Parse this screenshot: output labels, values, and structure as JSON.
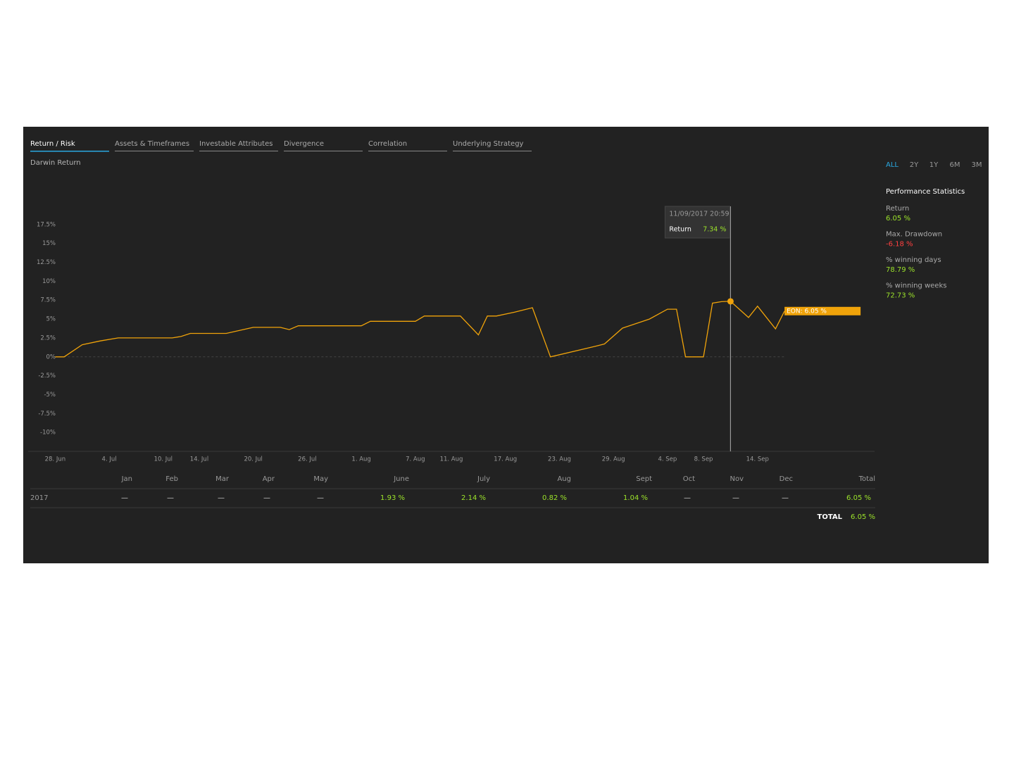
{
  "tabs": [
    "Return / Risk",
    "Assets & Timeframes",
    "Investable Attributes",
    "Divergence",
    "Correlation",
    "Underlying Strategy"
  ],
  "active_tab": 0,
  "section_label": "Darwin Return",
  "ranges": [
    "ALL",
    "2Y",
    "1Y",
    "6M",
    "3M"
  ],
  "active_range": 0,
  "stats": {
    "title": "Performance Statistics",
    "items": [
      {
        "label": "Return",
        "value": "6.05 %"
      },
      {
        "label": "Max. Drawdown",
        "value": "-6.18 %"
      },
      {
        "label": "% winning days",
        "value": "78.79 %"
      },
      {
        "label": "% winning weeks",
        "value": "72.73 %"
      }
    ]
  },
  "chart_data": {
    "type": "line",
    "x": [
      "2017-06-28",
      "2017-06-29",
      "2017-07-01",
      "2017-07-03",
      "2017-07-05",
      "2017-07-11",
      "2017-07-12",
      "2017-07-13",
      "2017-07-17",
      "2017-07-20",
      "2017-07-23",
      "2017-07-24",
      "2017-07-25",
      "2017-08-01",
      "2017-08-02",
      "2017-08-07",
      "2017-08-08",
      "2017-08-12",
      "2017-08-14",
      "2017-08-15",
      "2017-08-16",
      "2017-08-18",
      "2017-08-20",
      "2017-08-22",
      "2017-08-27",
      "2017-08-28",
      "2017-08-30",
      "2017-09-02",
      "2017-09-04",
      "2017-09-05",
      "2017-09-06",
      "2017-09-08",
      "2017-09-09",
      "2017-09-10",
      "2017-09-11",
      "2017-09-13",
      "2017-09-14",
      "2017-09-16",
      "2017-09-17"
    ],
    "series": [
      {
        "color": "#f0a30a",
        "values": [
          0,
          0,
          1.6,
          2.1,
          2.5,
          2.5,
          2.7,
          3.1,
          3.1,
          3.9,
          3.9,
          3.6,
          4.1,
          4.1,
          4.7,
          4.7,
          5.4,
          5.4,
          2.9,
          5.4,
          5.4,
          5.9,
          6.5,
          0,
          1.4,
          1.7,
          3.8,
          5.0,
          6.3,
          6.3,
          0,
          0,
          7.1,
          7.3,
          7.34,
          5.2,
          6.7,
          3.7,
          6.05
        ]
      }
    ],
    "xlim": [
      "2017-06-25",
      "2017-09-27"
    ],
    "xticks": [
      {
        "value": "2017-06-28",
        "label": "28. Jun"
      },
      {
        "value": "2017-07-04",
        "label": "4. Jul"
      },
      {
        "value": "2017-07-10",
        "label": "10. Jul"
      },
      {
        "value": "2017-07-14",
        "label": "14. Jul"
      },
      {
        "value": "2017-07-20",
        "label": "20. Jul"
      },
      {
        "value": "2017-07-26",
        "label": "26. Jul"
      },
      {
        "value": "2017-08-01",
        "label": "1. Aug"
      },
      {
        "value": "2017-08-07",
        "label": "7. Aug"
      },
      {
        "value": "2017-08-11",
        "label": "11. Aug"
      },
      {
        "value": "2017-08-17",
        "label": "17. Aug"
      },
      {
        "value": "2017-08-23",
        "label": "23. Aug"
      },
      {
        "value": "2017-08-29",
        "label": "29. Aug"
      },
      {
        "value": "2017-09-04",
        "label": "4. Sep"
      },
      {
        "value": "2017-09-08",
        "label": "8. Sep"
      },
      {
        "value": "2017-09-14",
        "label": "14. Sep"
      }
    ],
    "ylim": [
      -12.5,
      20
    ],
    "yticks": [
      {
        "value": 17.5,
        "label": "17.5%"
      },
      {
        "value": 15,
        "label": "15%"
      },
      {
        "value": 12.5,
        "label": "12.5%"
      },
      {
        "value": 10,
        "label": "10%"
      },
      {
        "value": 7.5,
        "label": "7.5%"
      },
      {
        "value": 5,
        "label": "5%"
      },
      {
        "value": 2.5,
        "label": "2.5%"
      },
      {
        "value": 0,
        "label": "0%"
      },
      {
        "value": -2.5,
        "label": "-2.5%"
      },
      {
        "value": -5,
        "label": "-5%"
      },
      {
        "value": -7.5,
        "label": "-7.5%"
      },
      {
        "value": -10,
        "label": "-10%"
      }
    ],
    "end_label": "EON: 6.05 %",
    "tooltip": {
      "date": "11/09/2017 20:59",
      "label": "Return",
      "value": "7.34 %"
    }
  },
  "table": {
    "header": [
      "Jan",
      "Feb",
      "Mar",
      "Apr",
      "May",
      "June",
      "July",
      "Aug",
      "Sept",
      "Oct",
      "Nov",
      "Dec",
      "Total"
    ],
    "rows": [
      [
        "2017",
        "—",
        "—",
        "—",
        "—",
        "—",
        "1.93 %",
        "2.14 %",
        "0.82 %",
        "1.04 %",
        "—",
        "—",
        "—",
        "6.05 %"
      ]
    ],
    "total": {
      "label": "TOTAL",
      "value": "6.05 %"
    }
  }
}
